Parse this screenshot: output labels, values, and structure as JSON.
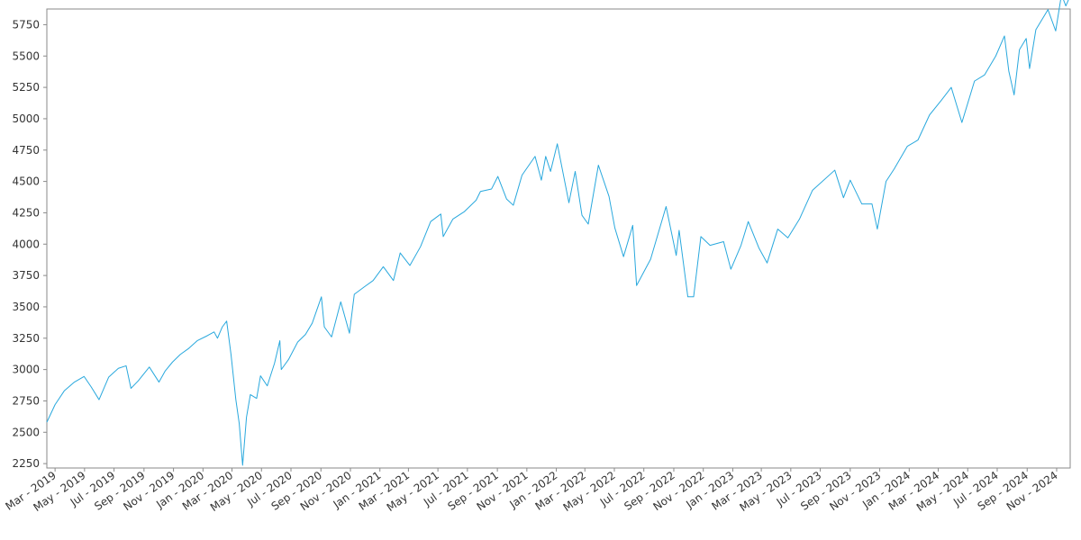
{
  "chart_data": {
    "type": "line",
    "title": "",
    "xlabel": "",
    "ylabel": "",
    "grid": false,
    "x_range": [
      "2019-02-12",
      "2024-11-29"
    ],
    "ylim": [
      2215,
      5875
    ],
    "y_ticks": [
      2250,
      2500,
      2750,
      3000,
      3250,
      3500,
      3750,
      4000,
      4250,
      4500,
      4750,
      5000,
      5250,
      5500,
      5750
    ],
    "x_ticks": [
      {
        "date": "2019-03-01",
        "label": "Mar - 2019"
      },
      {
        "date": "2019-05-01",
        "label": "May - 2019"
      },
      {
        "date": "2019-07-01",
        "label": "Jul - 2019"
      },
      {
        "date": "2019-09-01",
        "label": "Sep - 2019"
      },
      {
        "date": "2019-11-01",
        "label": "Nov - 2019"
      },
      {
        "date": "2020-01-01",
        "label": "Jan - 2020"
      },
      {
        "date": "2020-03-01",
        "label": "Mar - 2020"
      },
      {
        "date": "2020-05-01",
        "label": "May - 2020"
      },
      {
        "date": "2020-07-01",
        "label": "Jul - 2020"
      },
      {
        "date": "2020-09-01",
        "label": "Sep - 2020"
      },
      {
        "date": "2020-11-01",
        "label": "Nov - 2020"
      },
      {
        "date": "2021-01-01",
        "label": "Jan - 2021"
      },
      {
        "date": "2021-03-01",
        "label": "Mar - 2021"
      },
      {
        "date": "2021-05-01",
        "label": "May - 2021"
      },
      {
        "date": "2021-07-01",
        "label": "Jul - 2021"
      },
      {
        "date": "2021-09-01",
        "label": "Sep - 2021"
      },
      {
        "date": "2021-11-01",
        "label": "Nov - 2021"
      },
      {
        "date": "2022-01-01",
        "label": "Jan - 2022"
      },
      {
        "date": "2022-03-01",
        "label": "Mar - 2022"
      },
      {
        "date": "2022-05-01",
        "label": "May - 2022"
      },
      {
        "date": "2022-07-01",
        "label": "Jul - 2022"
      },
      {
        "date": "2022-09-01",
        "label": "Sep - 2022"
      },
      {
        "date": "2022-11-01",
        "label": "Nov - 2022"
      },
      {
        "date": "2023-01-01",
        "label": "Jan - 2023"
      },
      {
        "date": "2023-03-01",
        "label": "Mar - 2023"
      },
      {
        "date": "2023-05-01",
        "label": "May - 2023"
      },
      {
        "date": "2023-07-01",
        "label": "Jul - 2023"
      },
      {
        "date": "2023-09-01",
        "label": "Sep - 2023"
      },
      {
        "date": "2023-11-01",
        "label": "Nov - 2023"
      },
      {
        "date": "2024-01-01",
        "label": "Jan - 2024"
      },
      {
        "date": "2024-03-01",
        "label": "Mar - 2024"
      },
      {
        "date": "2024-05-01",
        "label": "May - 2024"
      },
      {
        "date": "2024-07-01",
        "label": "Jul - 2024"
      },
      {
        "date": "2024-09-01",
        "label": "Sep - 2024"
      },
      {
        "date": "2024-11-01",
        "label": "Nov - 2024"
      }
    ],
    "series": [
      {
        "color": "#29a8dd",
        "x": [
          "2019-02-12",
          "2019-03-01",
          "2019-03-20",
          "2019-04-10",
          "2019-04-30",
          "2019-05-15",
          "2019-05-31",
          "2019-06-20",
          "2019-07-10",
          "2019-07-26",
          "2019-08-05",
          "2019-08-20",
          "2019-09-12",
          "2019-10-02",
          "2019-10-15",
          "2019-10-30",
          "2019-11-15",
          "2019-12-03",
          "2019-12-20",
          "2020-01-10",
          "2020-01-24",
          "2020-01-31",
          "2020-02-10",
          "2020-02-19",
          "2020-02-28",
          "2020-03-09",
          "2020-03-16",
          "2020-03-23",
          "2020-03-31",
          "2020-04-08",
          "2020-04-21",
          "2020-04-29",
          "2020-05-13",
          "2020-05-28",
          "2020-06-08",
          "2020-06-11",
          "2020-06-26",
          "2020-07-15",
          "2020-07-31",
          "2020-08-14",
          "2020-09-02",
          "2020-09-08",
          "2020-09-23",
          "2020-10-12",
          "2020-10-30",
          "2020-11-09",
          "2020-11-30",
          "2020-12-18",
          "2021-01-08",
          "2021-01-29",
          "2021-02-12",
          "2021-03-04",
          "2021-03-26",
          "2021-04-16",
          "2021-05-07",
          "2021-05-12",
          "2021-06-01",
          "2021-06-25",
          "2021-07-19",
          "2021-07-28",
          "2021-08-20",
          "2021-09-02",
          "2021-09-20",
          "2021-10-04",
          "2021-10-22",
          "2021-11-18",
          "2021-12-01",
          "2021-12-10",
          "2021-12-20",
          "2022-01-03",
          "2022-01-27",
          "2022-02-09",
          "2022-02-23",
          "2022-03-08",
          "2022-03-29",
          "2022-04-20",
          "2022-05-02",
          "2022-05-20",
          "2022-06-08",
          "2022-06-16",
          "2022-07-15",
          "2022-08-16",
          "2022-09-06",
          "2022-09-12",
          "2022-09-30",
          "2022-10-12",
          "2022-10-27",
          "2022-11-15",
          "2022-12-13",
          "2022-12-28",
          "2023-01-18",
          "2023-02-02",
          "2023-02-24",
          "2023-03-13",
          "2023-04-04",
          "2023-04-25",
          "2023-05-19",
          "2023-06-15",
          "2023-07-31",
          "2023-08-18",
          "2023-09-01",
          "2023-09-25",
          "2023-10-16",
          "2023-10-27",
          "2023-11-14",
          "2023-12-01",
          "2023-12-28",
          "2024-01-19",
          "2024-02-12",
          "2024-03-08",
          "2024-03-28",
          "2024-04-19",
          "2024-05-15",
          "2024-06-05",
          "2024-06-28",
          "2024-07-16",
          "2024-07-25",
          "2024-08-05",
          "2024-08-16",
          "2024-08-30",
          "2024-09-06",
          "2024-09-19",
          "2024-10-14",
          "2024-10-30",
          "2024-11-11",
          "2024-11-20",
          "2024-11-29"
        ],
        "y": [
          2580,
          2720,
          2830,
          2900,
          2945,
          2860,
          2760,
          2940,
          3010,
          3030,
          2850,
          2910,
          3020,
          2900,
          2990,
          3060,
          3120,
          3170,
          3230,
          3270,
          3300,
          3250,
          3340,
          3386,
          3120,
          2760,
          2570,
          2237,
          2620,
          2800,
          2770,
          2950,
          2870,
          3050,
          3230,
          3000,
          3080,
          3220,
          3280,
          3370,
          3580,
          3340,
          3260,
          3540,
          3290,
          3600,
          3660,
          3710,
          3820,
          3710,
          3930,
          3830,
          3980,
          4180,
          4240,
          4060,
          4200,
          4260,
          4350,
          4420,
          4440,
          4540,
          4360,
          4310,
          4550,
          4700,
          4510,
          4700,
          4580,
          4800,
          4330,
          4580,
          4230,
          4160,
          4630,
          4380,
          4130,
          3900,
          4150,
          3670,
          3880,
          4300,
          3910,
          4110,
          3580,
          3580,
          4060,
          3990,
          4020,
          3800,
          3990,
          4180,
          3970,
          3850,
          4120,
          4050,
          4200,
          4430,
          4590,
          4370,
          4510,
          4320,
          4320,
          4120,
          4500,
          4600,
          4780,
          4830,
          5030,
          5150,
          5250,
          4970,
          5300,
          5350,
          5500,
          5660,
          5380,
          5190,
          5550,
          5640,
          5400,
          5710,
          5870,
          5700,
          5990,
          5900,
          5980
        ]
      }
    ]
  }
}
